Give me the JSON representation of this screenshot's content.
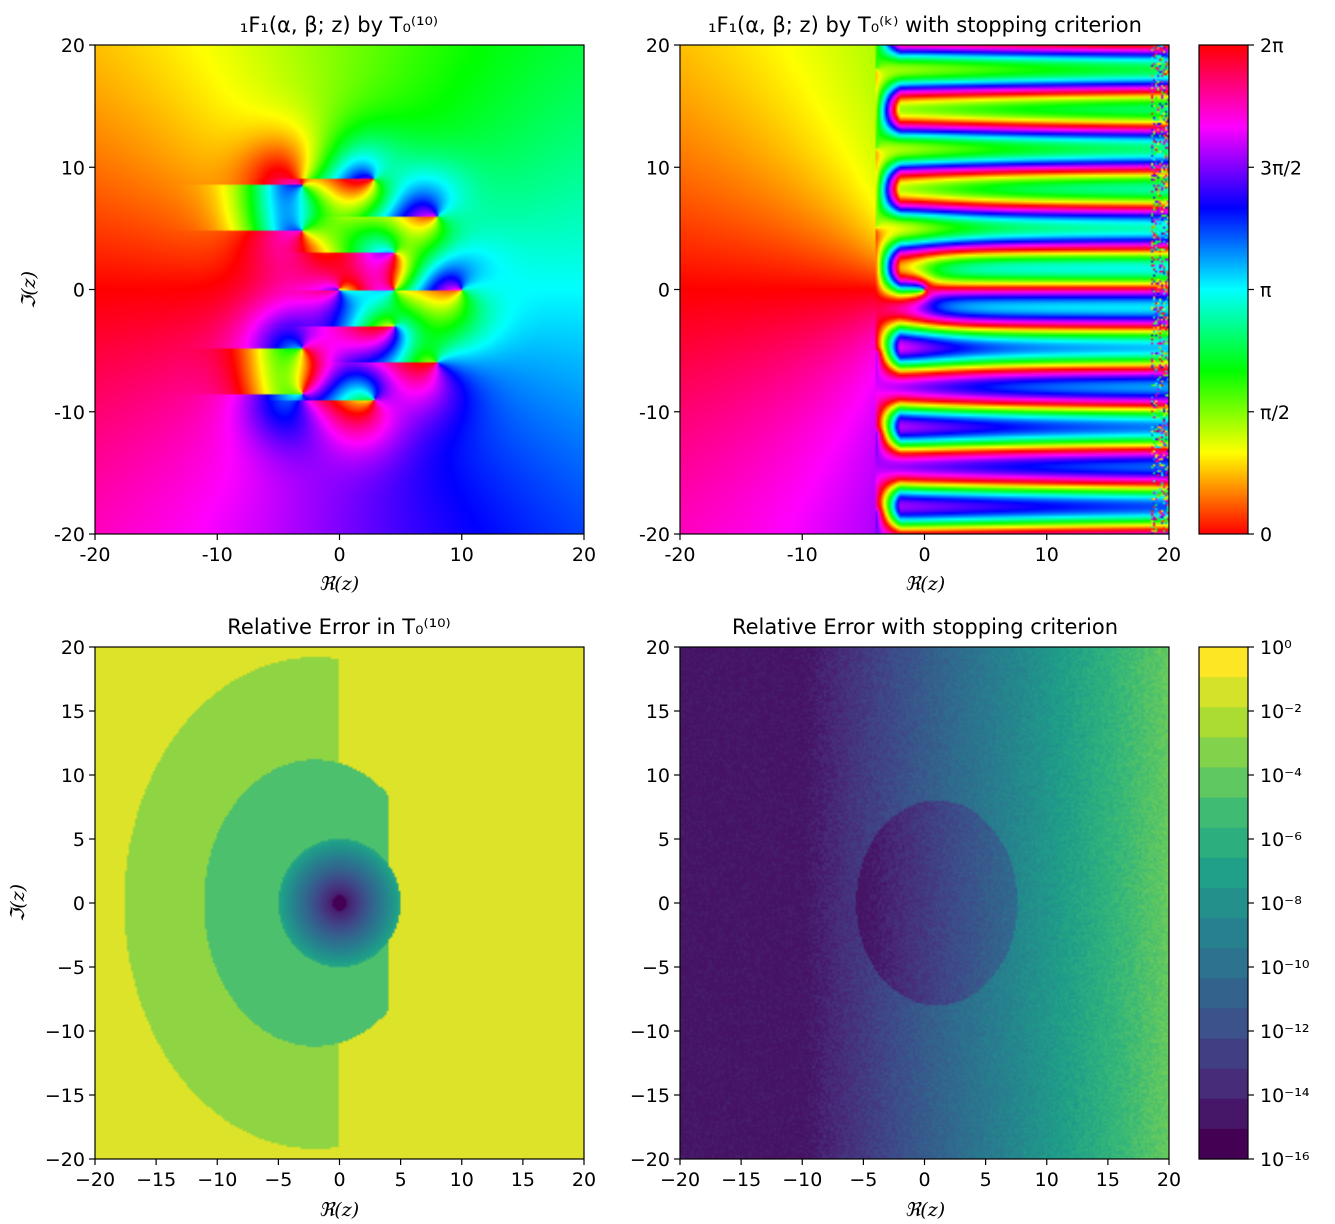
{
  "chart_data": [
    {
      "type": "heatmap",
      "title": "₁F₁(α, β; z) by T₀⁽¹⁰⁾",
      "xlabel": "ℜ(z)",
      "ylabel": "ℑ(z)",
      "xlim": [
        -20,
        20
      ],
      "ylim": [
        -20,
        20
      ],
      "xticks": [
        "-20",
        "-10",
        "0",
        "10",
        "20"
      ],
      "yticks": [
        "20",
        "10",
        "0",
        "-10",
        "-20"
      ],
      "quantity": "phase (argument)",
      "colormap": "hsv"
    },
    {
      "type": "heatmap",
      "title": "₁F₁(α, β; z) by T₀⁽ᵏ⁾ with stopping criterion",
      "xlabel": "ℜ(z)",
      "ylabel": "",
      "xlim": [
        -20,
        20
      ],
      "ylim": [
        -20,
        20
      ],
      "xticks": [
        "-20",
        "-10",
        "0",
        "10",
        "20"
      ],
      "yticks": [
        "20",
        "10",
        "0",
        "-10",
        "-20"
      ],
      "quantity": "phase (argument)",
      "colormap": "hsv",
      "colorbar": {
        "range": [
          0,
          6.2832
        ],
        "tick_labels": [
          "2π",
          "3π/2",
          "π",
          "π/2",
          "0"
        ]
      }
    },
    {
      "type": "heatmap",
      "title": "Relative Error in T₀⁽¹⁰⁾",
      "xlabel": "ℜ(z)",
      "ylabel": "ℑ(z)",
      "xlim": [
        -20,
        20
      ],
      "ylim": [
        -20,
        20
      ],
      "xticks": [
        "−20",
        "−15",
        "−10",
        "−5",
        "0",
        "5",
        "10",
        "15",
        "20"
      ],
      "yticks": [
        "20",
        "15",
        "10",
        "5",
        "0",
        "−5",
        "−10",
        "−15",
        "−20"
      ],
      "quantity": "relative error (log scale)",
      "colormap": "viridis"
    },
    {
      "type": "heatmap",
      "title": "Relative Error with stopping criterion",
      "xlabel": "ℜ(z)",
      "ylabel": "",
      "xlim": [
        -20,
        20
      ],
      "ylim": [
        -20,
        20
      ],
      "xticks": [
        "−20",
        "−15",
        "−10",
        "−5",
        "0",
        "5",
        "10",
        "15",
        "20"
      ],
      "yticks": [
        "20",
        "15",
        "10",
        "5",
        "0",
        "−5",
        "−10",
        "−15",
        "−20"
      ],
      "quantity": "relative error (log scale)",
      "colormap": "viridis",
      "colorbar": {
        "scale": "log",
        "range": [
          1e-16,
          1
        ],
        "tick_labels": [
          "10⁰",
          "10⁻²",
          "10⁻⁴",
          "10⁻⁶",
          "10⁻⁸",
          "10⁻¹⁰",
          "10⁻¹²",
          "10⁻¹⁴",
          "10⁻¹⁶"
        ]
      }
    }
  ]
}
